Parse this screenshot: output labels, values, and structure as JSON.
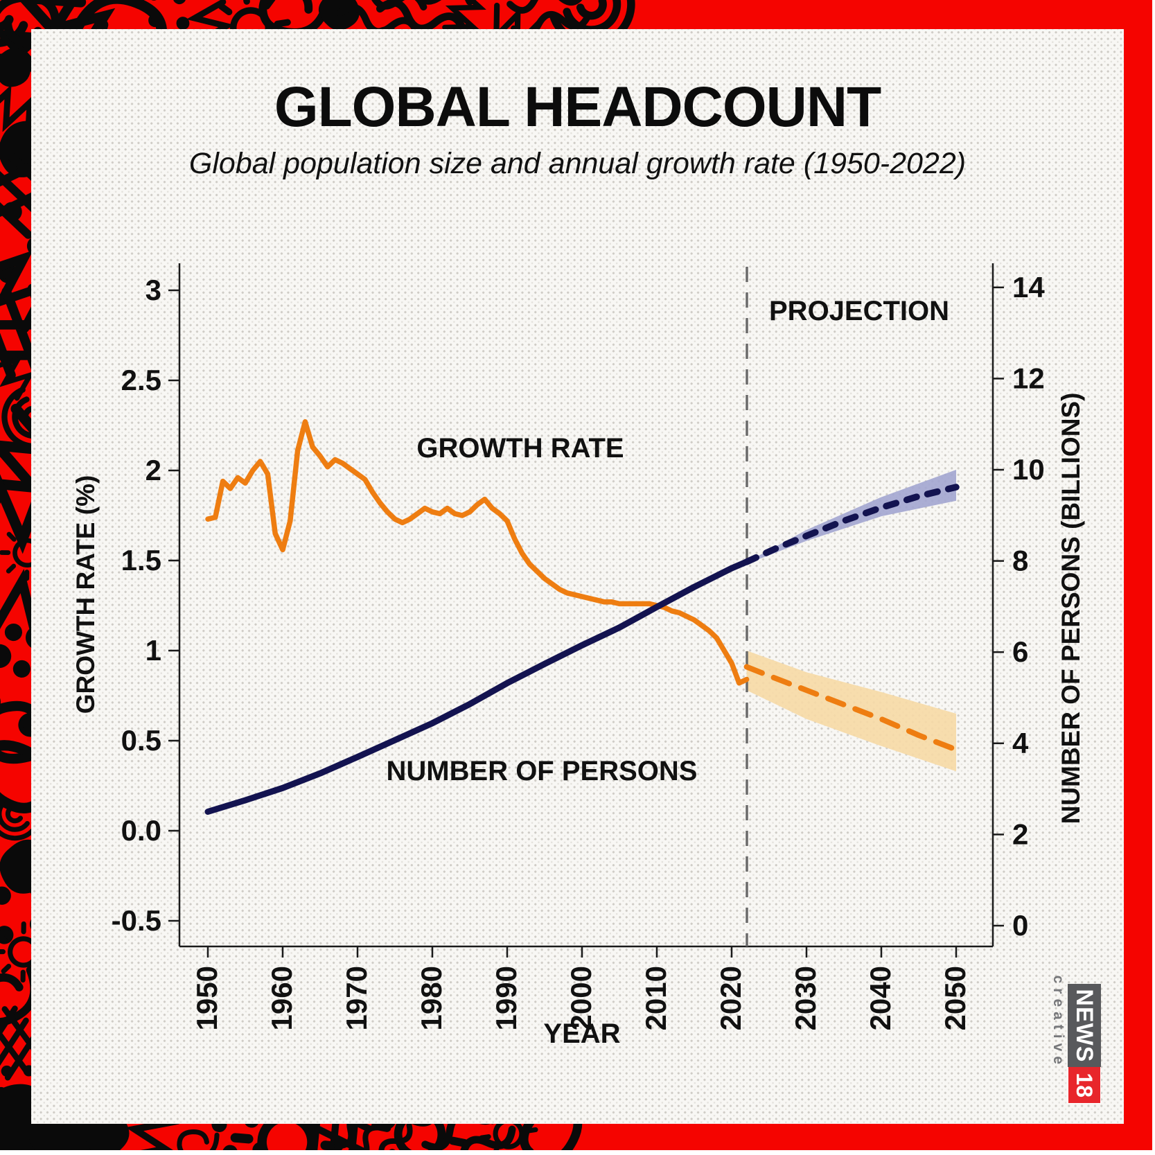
{
  "header": {
    "title": "GLOBAL HEADCOUNT",
    "subtitle": "Global population size and annual growth rate (1950-2022)"
  },
  "chart_data": {
    "type": "line",
    "title": "GLOBAL HEADCOUNT",
    "subtitle": "Global population size and annual growth rate (1950-2022)",
    "grid": false,
    "x_axis": {
      "label": "YEAR",
      "ticks": [
        "1950",
        "1960",
        "1970",
        "1980",
        "1990",
        "2000",
        "2010",
        "2020",
        "2030",
        "2040",
        "2050"
      ],
      "range": [
        1946,
        2055
      ]
    },
    "left_axis": {
      "label": "GROWTH RATE (%)",
      "ticks": [
        "3",
        "2.5",
        "2",
        "1.5",
        "1",
        "0.5",
        "0.0",
        "-0.5"
      ],
      "tick_values": [
        3,
        2.5,
        2,
        1.5,
        1,
        0.5,
        0,
        -0.5
      ],
      "range": [
        -0.5,
        3
      ]
    },
    "right_axis": {
      "label": "NUMBER OF PERSONS (BILLIONS)",
      "ticks": [
        "14",
        "12",
        "10",
        "8",
        "6",
        "4",
        "2",
        "0"
      ],
      "tick_values": [
        14,
        12,
        10,
        8,
        6,
        4,
        2,
        0
      ],
      "range": [
        0,
        14
      ]
    },
    "annotations": {
      "projection_label": "PROJECTION",
      "projection_start_year": 2022,
      "growth_series_label": "GROWTH RATE",
      "population_series_label": "NUMBER OF PERSONS"
    },
    "series": [
      {
        "name": "GROWTH RATE",
        "axis": "left",
        "style": "solid",
        "color": "#EE7D11",
        "width": 7.5,
        "points": [
          [
            1950,
            1.73
          ],
          [
            1951,
            1.74
          ],
          [
            1952,
            1.94
          ],
          [
            1953,
            1.9
          ],
          [
            1954,
            1.96
          ],
          [
            1955,
            1.93
          ],
          [
            1956,
            2.0
          ],
          [
            1957,
            2.05
          ],
          [
            1958,
            1.98
          ],
          [
            1959,
            1.65
          ],
          [
            1960,
            1.56
          ],
          [
            1961,
            1.72
          ],
          [
            1962,
            2.11
          ],
          [
            1963,
            2.27
          ],
          [
            1964,
            2.13
          ],
          [
            1965,
            2.08
          ],
          [
            1966,
            2.02
          ],
          [
            1967,
            2.06
          ],
          [
            1968,
            2.04
          ],
          [
            1969,
            2.01
          ],
          [
            1970,
            1.98
          ],
          [
            1971,
            1.95
          ],
          [
            1972,
            1.88
          ],
          [
            1973,
            1.82
          ],
          [
            1974,
            1.77
          ],
          [
            1975,
            1.73
          ],
          [
            1976,
            1.71
          ],
          [
            1977,
            1.73
          ],
          [
            1978,
            1.76
          ],
          [
            1979,
            1.79
          ],
          [
            1980,
            1.77
          ],
          [
            1981,
            1.76
          ],
          [
            1982,
            1.79
          ],
          [
            1983,
            1.76
          ],
          [
            1984,
            1.75
          ],
          [
            1985,
            1.77
          ],
          [
            1986,
            1.81
          ],
          [
            1987,
            1.84
          ],
          [
            1988,
            1.79
          ],
          [
            1989,
            1.76
          ],
          [
            1990,
            1.72
          ],
          [
            1991,
            1.62
          ],
          [
            1992,
            1.54
          ],
          [
            1993,
            1.48
          ],
          [
            1994,
            1.44
          ],
          [
            1995,
            1.4
          ],
          [
            1996,
            1.37
          ],
          [
            1997,
            1.34
          ],
          [
            1998,
            1.32
          ],
          [
            1999,
            1.31
          ],
          [
            2000,
            1.3
          ],
          [
            2001,
            1.29
          ],
          [
            2002,
            1.28
          ],
          [
            2003,
            1.27
          ],
          [
            2004,
            1.27
          ],
          [
            2005,
            1.26
          ],
          [
            2006,
            1.26
          ],
          [
            2007,
            1.26
          ],
          [
            2008,
            1.26
          ],
          [
            2009,
            1.26
          ],
          [
            2010,
            1.25
          ],
          [
            2011,
            1.24
          ],
          [
            2012,
            1.22
          ],
          [
            2013,
            1.21
          ],
          [
            2014,
            1.19
          ],
          [
            2015,
            1.17
          ],
          [
            2016,
            1.14
          ],
          [
            2017,
            1.11
          ],
          [
            2018,
            1.07
          ],
          [
            2019,
            1.0
          ],
          [
            2020,
            0.93
          ],
          [
            2021,
            0.82
          ],
          [
            2022,
            0.84
          ]
        ]
      },
      {
        "name": "GROWTH RATE projection",
        "axis": "left",
        "style": "dotted",
        "color": "#EE7D11",
        "width": 8,
        "points": [
          [
            2022,
            0.91
          ],
          [
            2025,
            0.86
          ],
          [
            2030,
            0.78
          ],
          [
            2035,
            0.7
          ],
          [
            2040,
            0.62
          ],
          [
            2045,
            0.53
          ],
          [
            2050,
            0.45
          ]
        ],
        "band_upper": [
          [
            2022,
            1.0
          ],
          [
            2030,
            0.88
          ],
          [
            2040,
            0.77
          ],
          [
            2050,
            0.65
          ]
        ],
        "band_lower": [
          [
            2022,
            0.78
          ],
          [
            2030,
            0.62
          ],
          [
            2040,
            0.47
          ],
          [
            2050,
            0.33
          ]
        ],
        "band_color": "#F6D9A5"
      },
      {
        "name": "NUMBER OF PERSONS",
        "axis": "right",
        "style": "solid",
        "color": "#131350",
        "width": 9,
        "points": [
          [
            1950,
            2.5
          ],
          [
            1955,
            2.75
          ],
          [
            1960,
            3.02
          ],
          [
            1965,
            3.34
          ],
          [
            1970,
            3.7
          ],
          [
            1975,
            4.07
          ],
          [
            1980,
            4.44
          ],
          [
            1985,
            4.86
          ],
          [
            1990,
            5.32
          ],
          [
            1995,
            5.74
          ],
          [
            2000,
            6.15
          ],
          [
            2005,
            6.54
          ],
          [
            2010,
            6.99
          ],
          [
            2015,
            7.43
          ],
          [
            2020,
            7.84
          ],
          [
            2022,
            7.98
          ]
        ]
      },
      {
        "name": "NUMBER OF PERSONS projection",
        "axis": "right",
        "style": "dotted",
        "color": "#131350",
        "width": 9.5,
        "points": [
          [
            2022,
            7.98
          ],
          [
            2026,
            8.28
          ],
          [
            2030,
            8.55
          ],
          [
            2035,
            8.88
          ],
          [
            2040,
            9.17
          ],
          [
            2045,
            9.42
          ],
          [
            2050,
            9.62
          ]
        ],
        "band_upper": [
          [
            2023,
            8.06
          ],
          [
            2030,
            8.68
          ],
          [
            2040,
            9.4
          ],
          [
            2050,
            10.0
          ]
        ],
        "band_lower": [
          [
            2023,
            8.0
          ],
          [
            2030,
            8.44
          ],
          [
            2040,
            8.98
          ],
          [
            2050,
            9.32
          ]
        ],
        "band_color": "#A2A5D0"
      }
    ]
  },
  "footer_logo": {
    "news": "NEWS",
    "num": "18",
    "creative": "creative"
  },
  "colors": {
    "border_red": "#F50400",
    "doodle_black": "#0a0a0a",
    "panel_bg": "#f8f7f4",
    "growth_orange": "#EE7D11",
    "population_navy": "#131350",
    "band_blue": "#A2A5D0",
    "band_orange": "#F6D9A5",
    "dashed_gray": "#6a6a6a",
    "text_black": "#111111"
  }
}
